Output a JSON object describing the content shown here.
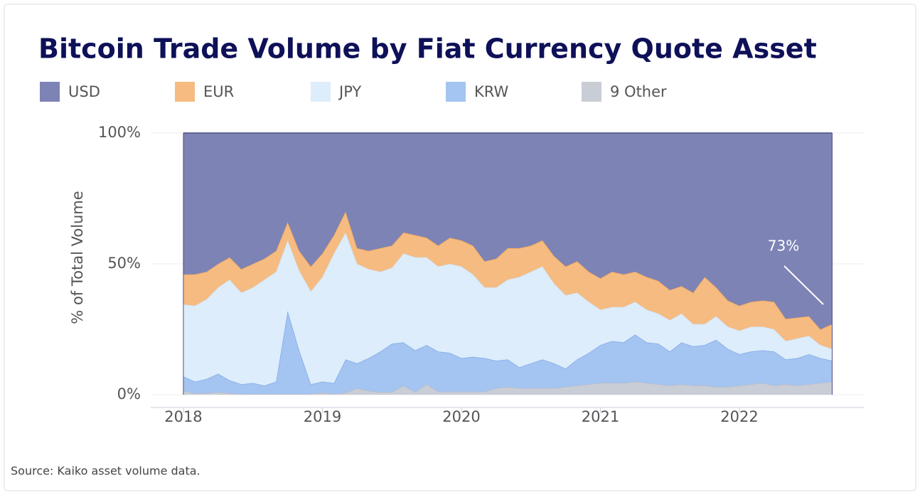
{
  "chart_data": {
    "type": "stacked_area",
    "title": "Bitcoin Trade Volume by Fiat Currency Quote Asset",
    "y_label": "% of Total Volume",
    "source": "Source: Kaiko asset volume data.",
    "annotation": "73%",
    "xlim": [
      2017.765,
      2022.895
    ],
    "xticks": [
      2018,
      2019,
      2020,
      2021,
      2022
    ],
    "ylim": [
      0,
      100
    ],
    "yticks": [
      {
        "value": 0,
        "label": "0%"
      },
      {
        "value": 50,
        "label": "50%"
      },
      {
        "value": 100,
        "label": "100%"
      }
    ],
    "grid": true,
    "x": [
      2018,
      2018.083,
      2018.167,
      2018.25,
      2018.333,
      2018.417,
      2018.5,
      2018.583,
      2018.667,
      2018.75,
      2018.833,
      2018.917,
      2019,
      2019.083,
      2019.167,
      2019.25,
      2019.333,
      2019.417,
      2019.5,
      2019.583,
      2019.667,
      2019.75,
      2019.833,
      2019.917,
      2020,
      2020.083,
      2020.167,
      2020.25,
      2020.333,
      2020.417,
      2020.5,
      2020.583,
      2020.667,
      2020.75,
      2020.833,
      2020.917,
      2021,
      2021.083,
      2021.167,
      2021.25,
      2021.333,
      2021.417,
      2021.5,
      2021.583,
      2021.667,
      2021.75,
      2021.833,
      2021.917,
      2022,
      2022.083,
      2022.167,
      2022.25,
      2022.333,
      2022.417,
      2022.5,
      2022.583,
      2022.667
    ],
    "series": [
      {
        "name": "USD",
        "color": "#7d83b5",
        "line": "#4b4f80",
        "values": [
          54,
          54,
          53,
          50,
          47.5,
          52,
          50,
          48,
          45,
          34,
          45,
          51,
          46,
          39,
          30,
          44,
          45,
          44,
          43,
          38,
          39,
          40,
          43,
          40,
          41,
          43,
          49,
          48,
          44,
          44,
          43,
          41,
          47,
          51,
          49,
          53,
          55.5,
          53,
          54,
          53,
          55,
          56.5,
          60,
          58.5,
          61,
          55,
          59,
          64,
          66,
          64.5,
          64,
          64.5,
          71,
          70.5,
          70,
          75,
          73
        ]
      },
      {
        "name": "EUR",
        "color": "#f5bb81",
        "line": "#eba25c",
        "values": [
          11.5,
          12,
          10.5,
          9,
          8.5,
          9,
          9,
          8,
          8,
          7,
          7.5,
          9.5,
          9,
          7,
          8,
          6,
          7,
          9,
          8.5,
          8,
          8.5,
          7.5,
          8,
          10,
          10,
          11,
          10,
          11,
          12,
          11,
          10,
          10,
          10.5,
          11,
          12,
          11.5,
          12,
          13.5,
          12.5,
          11.5,
          12.5,
          12.5,
          11.5,
          10.5,
          12,
          18,
          11,
          10,
          9.5,
          9.5,
          10,
          10.5,
          8.5,
          8,
          7.5,
          6,
          9.5
        ]
      },
      {
        "name": "JPY",
        "color": "#ddedfb",
        "line": "#cfe2f6",
        "values": [
          27.5,
          29,
          30.5,
          33,
          38.5,
          35,
          36.5,
          40.5,
          42,
          27,
          30.5,
          35.5,
          40,
          49.5,
          48.5,
          38,
          34,
          30.5,
          29,
          34,
          35.5,
          33.5,
          32.5,
          34,
          35,
          31.5,
          27,
          28,
          30.5,
          34.5,
          35,
          35.5,
          30.5,
          28,
          25.5,
          19.5,
          13.5,
          13,
          13.5,
          12.5,
          12.5,
          11.5,
          12,
          11,
          8.5,
          8,
          9,
          8.5,
          9,
          9.5,
          9,
          8.5,
          7,
          7.5,
          7,
          5,
          4.5
        ]
      },
      {
        "name": "KRW",
        "color": "#a4c4f1",
        "line": "#82a9ea",
        "values": [
          5.5,
          4.5,
          5.5,
          7,
          5,
          3.7,
          4.2,
          3.2,
          4.7,
          31.7,
          16.7,
          3.7,
          4.3,
          4.2,
          12.8,
          9.5,
          12.5,
          15.5,
          18.5,
          16.5,
          16,
          15,
          15.3,
          14.8,
          12.8,
          13.3,
          12.8,
          10.5,
          10.5,
          8,
          9.5,
          11,
          9.5,
          7,
          10,
          12,
          14.5,
          16,
          15.5,
          18,
          15.5,
          15.5,
          13,
          16,
          15,
          15.5,
          18,
          14.5,
          12,
          12.5,
          12.5,
          13,
          9.5,
          10.5,
          11.5,
          9.5,
          8
        ]
      },
      {
        "name": "9 Other",
        "color": "#c9cdd6",
        "line": "#b9bdc8",
        "values": [
          1.5,
          0.5,
          0.5,
          1,
          0.5,
          0.3,
          0.3,
          0.3,
          0.3,
          0.3,
          0.3,
          0.3,
          0.7,
          0.3,
          0.7,
          2.5,
          1.5,
          1,
          1,
          3.5,
          1,
          4,
          1.2,
          1.2,
          1.2,
          1.2,
          1.2,
          2.5,
          3,
          2.5,
          2.5,
          2.5,
          2.5,
          3,
          3.5,
          4,
          4.5,
          4.5,
          4.5,
          5,
          4.5,
          4,
          3.5,
          4,
          3.5,
          3.5,
          3,
          3,
          3.5,
          4,
          4.5,
          3.5,
          4,
          3.5,
          4,
          4.5,
          5
        ]
      }
    ]
  }
}
